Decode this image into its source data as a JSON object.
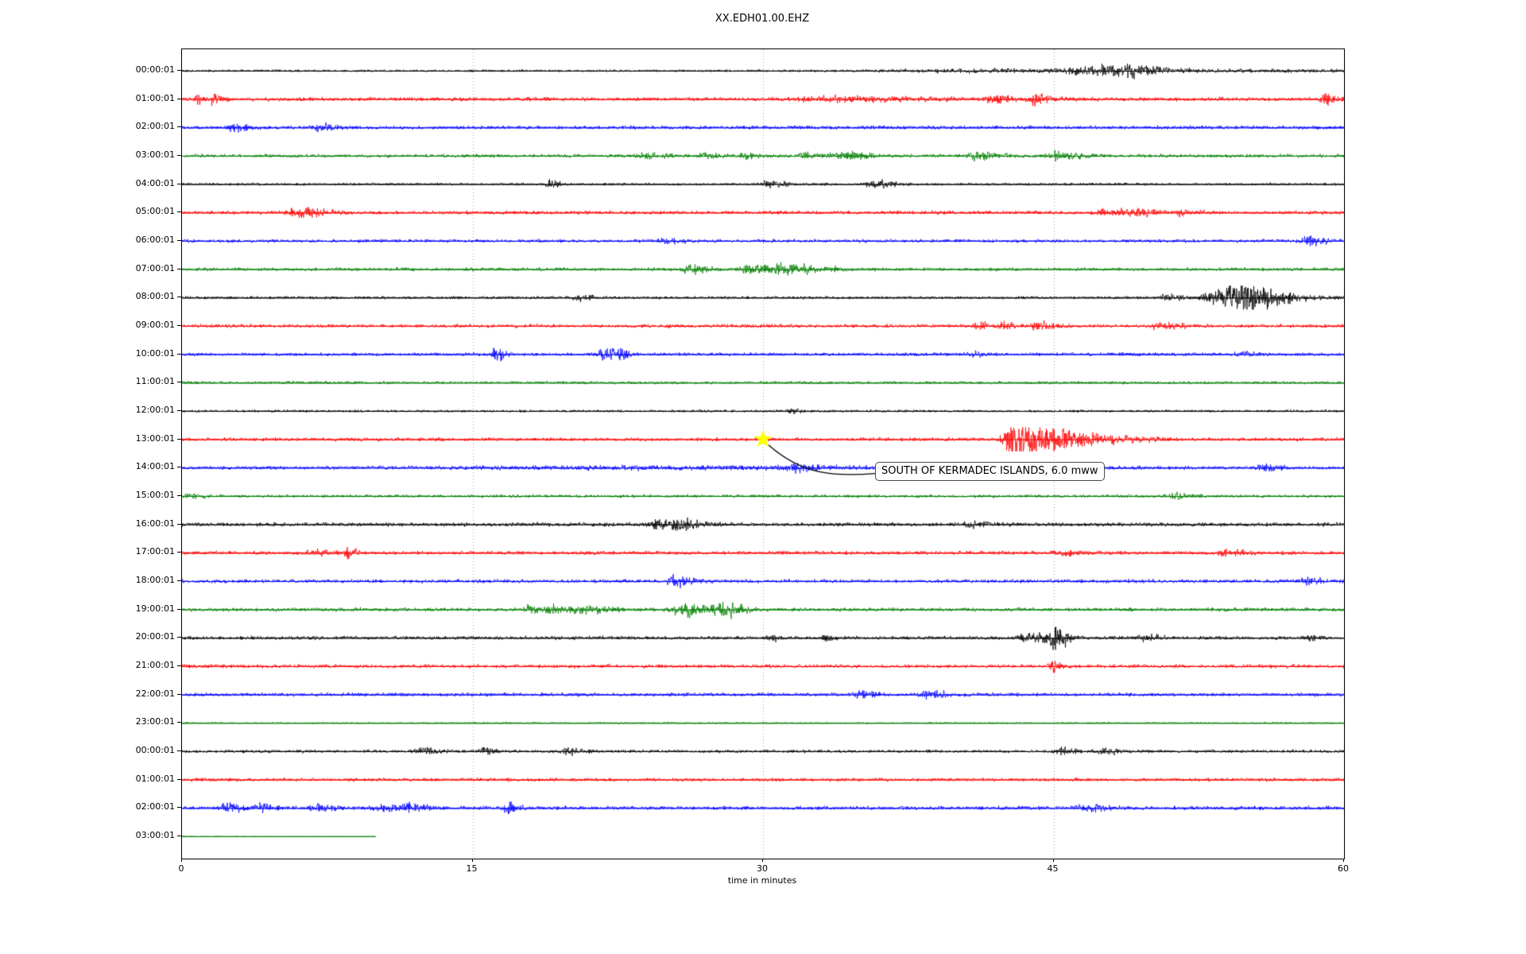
{
  "window": {
    "background": "#ffffff"
  },
  "chart_data": {
    "type": "line",
    "subtype": "seismogram-dayplot",
    "title": "XX.EDH01.00.EHZ",
    "xlabel": "time in minutes",
    "x_range": [
      0,
      60
    ],
    "x_ticks": [
      0,
      15,
      30,
      45,
      60
    ],
    "gridlines": {
      "vertical_at_minutes": [
        15,
        30,
        45
      ],
      "style": "dotted",
      "color": "#a6a6a6"
    },
    "palette": {
      "black": "#000000",
      "red": "#ff0000",
      "blue": "#0000ff",
      "green": "#008000"
    },
    "annotation": {
      "text": "SOUTH OF KERMADEC ISLANDS, 6.0 mww",
      "row": 13,
      "minute": 30,
      "marker": "star-icon",
      "marker_color": "#ffff00",
      "box_fill": "#ffffff",
      "box_border": "#4a4a4a"
    },
    "rows": [
      {
        "label": "00:00:01",
        "color": "black",
        "noise": 1.0,
        "events": [
          [
            43,
            1.2,
            5
          ],
          [
            46,
            2.5,
            0.2
          ],
          [
            46.8,
            2.5,
            0.2
          ],
          [
            47.5,
            3,
            0.2
          ],
          [
            48.3,
            2.5,
            0.2
          ],
          [
            49,
            3.5,
            0.2
          ],
          [
            50,
            2.5,
            0.2
          ]
        ]
      },
      {
        "label": "01:00:01",
        "color": "red",
        "noise": 1.6,
        "events": [
          [
            0.8,
            4.5,
            0.12
          ],
          [
            1.6,
            3.5,
            0.15
          ],
          [
            34,
            1.5,
            1.5
          ],
          [
            42,
            3,
            0.3
          ],
          [
            44.1,
            4.5,
            0.25
          ],
          [
            59.1,
            4.5,
            0.2
          ]
        ]
      },
      {
        "label": "02:00:01",
        "color": "blue",
        "noise": 1.5,
        "events": [
          [
            2.7,
            3,
            0.25
          ],
          [
            7.1,
            2,
            0.3
          ]
        ]
      },
      {
        "label": "03:00:01",
        "color": "green",
        "noise": 1.4,
        "events": [
          [
            24,
            2,
            0.3
          ],
          [
            27.2,
            2,
            0.3
          ],
          [
            29.1,
            2,
            0.25
          ],
          [
            32.2,
            2,
            0.3
          ],
          [
            34.2,
            3,
            0.4
          ],
          [
            41,
            3,
            0.35
          ],
          [
            45.2,
            3,
            0.4
          ]
        ]
      },
      {
        "label": "04:00:01",
        "color": "black",
        "noise": 1.1,
        "events": [
          [
            19,
            3,
            0.15
          ],
          [
            30.3,
            2.5,
            0.3
          ],
          [
            35.8,
            3,
            0.3
          ]
        ]
      },
      {
        "label": "05:00:01",
        "color": "red",
        "noise": 1.5,
        "events": [
          [
            6,
            3,
            0.5
          ],
          [
            48,
            2.5,
            0.5
          ],
          [
            49.5,
            2.5,
            0.3
          ],
          [
            51.5,
            2,
            0.3
          ]
        ]
      },
      {
        "label": "06:00:01",
        "color": "blue",
        "noise": 1.4,
        "events": [
          [
            25,
            1.8,
            0.3
          ],
          [
            58.3,
            3.5,
            0.3
          ]
        ]
      },
      {
        "label": "07:00:01",
        "color": "green",
        "noise": 1.4,
        "events": [
          [
            26.1,
            2.5,
            0.2
          ],
          [
            26.7,
            2.5,
            0.2
          ],
          [
            29.2,
            3.5,
            0.3
          ],
          [
            30.7,
            4,
            0.35
          ],
          [
            31.4,
            2.5,
            0.2
          ],
          [
            32.2,
            2.5,
            0.2
          ],
          [
            33.3,
            2,
            0.2
          ]
        ]
      },
      {
        "label": "08:00:01",
        "color": "black",
        "noise": 1.2,
        "events": [
          [
            20.5,
            2.5,
            0.2
          ],
          [
            50.8,
            3,
            0.25
          ],
          [
            53.1,
            4.5,
            0.3
          ],
          [
            54.3,
            8,
            0.4
          ],
          [
            55,
            6,
            0.5
          ],
          [
            56,
            2.5,
            1
          ]
        ]
      },
      {
        "label": "09:00:01",
        "color": "red",
        "noise": 1.5,
        "events": [
          [
            41.2,
            3,
            0.2
          ],
          [
            42.4,
            2.5,
            0.2
          ],
          [
            44.2,
            3,
            0.3
          ],
          [
            50.5,
            3.5,
            0.3
          ]
        ]
      },
      {
        "label": "10:00:01",
        "color": "blue",
        "noise": 1.4,
        "events": [
          [
            16.2,
            4.5,
            0.15
          ],
          [
            21.8,
            3.5,
            0.3
          ],
          [
            22.4,
            3,
            0.25
          ],
          [
            40.8,
            2,
            0.2
          ],
          [
            54.6,
            2.5,
            0.2
          ]
        ]
      },
      {
        "label": "11:00:01",
        "color": "green",
        "noise": 1.2,
        "events": []
      },
      {
        "label": "12:00:01",
        "color": "black",
        "noise": 1.1,
        "events": [
          [
            31.5,
            1.8,
            0.15
          ]
        ]
      },
      {
        "label": "13:00:01",
        "color": "red",
        "noise": 1.5,
        "events": [
          [
            42.9,
            12,
            0.3
          ],
          [
            43.6,
            7,
            0.5
          ],
          [
            44.8,
            4,
            0.8
          ],
          [
            46.5,
            2.5,
            1
          ]
        ]
      },
      {
        "label": "14:00:01",
        "color": "blue",
        "noise": 1.4,
        "events": [
          [
            22,
            1,
            6
          ],
          [
            31.6,
            3,
            0.25
          ],
          [
            55.9,
            2.5,
            0.25
          ]
        ]
      },
      {
        "label": "15:00:01",
        "color": "green",
        "noise": 1.3,
        "events": [
          [
            0.5,
            2.5,
            0.2
          ],
          [
            51.3,
            2.5,
            0.25
          ]
        ]
      },
      {
        "label": "16:00:01",
        "color": "black",
        "noise": 1.7,
        "events": [
          [
            24.6,
            3.5,
            0.35
          ],
          [
            25.6,
            4,
            0.35
          ],
          [
            40.8,
            2.5,
            0.25
          ]
        ]
      },
      {
        "label": "17:00:01",
        "color": "red",
        "noise": 1.5,
        "events": [
          [
            6.8,
            3,
            0.25
          ],
          [
            8.6,
            3.5,
            0.15
          ],
          [
            45.5,
            2,
            0.3
          ],
          [
            54,
            2,
            0.3
          ]
        ]
      },
      {
        "label": "18:00:01",
        "color": "blue",
        "noise": 1.5,
        "events": [
          [
            25.4,
            4,
            0.3
          ],
          [
            58,
            2.5,
            0.25
          ]
        ]
      },
      {
        "label": "19:00:01",
        "color": "green",
        "noise": 1.5,
        "events": [
          [
            17.9,
            4,
            0.15
          ],
          [
            18.8,
            3,
            0.15
          ],
          [
            20.2,
            2.5,
            0.7
          ],
          [
            25.6,
            3.5,
            0.25
          ],
          [
            26.5,
            3,
            0.4
          ],
          [
            27.8,
            3.5,
            0.3
          ],
          [
            28.4,
            3,
            0.25
          ]
        ]
      },
      {
        "label": "20:00:01",
        "color": "black",
        "noise": 1.5,
        "events": [
          [
            30.4,
            2.5,
            0.15
          ],
          [
            33.2,
            2.5,
            0.15
          ],
          [
            43.6,
            2.5,
            0.25
          ],
          [
            44.3,
            2.5,
            0.2
          ],
          [
            45.1,
            10,
            0.2
          ],
          [
            49.7,
            2.5,
            0.25
          ],
          [
            58,
            2,
            0.15
          ]
        ]
      },
      {
        "label": "21:00:01",
        "color": "red",
        "noise": 1.5,
        "events": [
          [
            44.9,
            5,
            0.15
          ]
        ]
      },
      {
        "label": "22:00:01",
        "color": "blue",
        "noise": 1.5,
        "events": [
          [
            35,
            3,
            0.25
          ],
          [
            38.5,
            3,
            0.3
          ]
        ]
      },
      {
        "label": "23:00:01",
        "color": "green",
        "noise": 0.7,
        "events": []
      },
      {
        "label": "00:00:01",
        "color": "black",
        "noise": 1.3,
        "events": [
          [
            12.4,
            2.5,
            0.25
          ],
          [
            15.6,
            3,
            0.2
          ],
          [
            19.9,
            2.5,
            0.3
          ],
          [
            45.4,
            2.5,
            0.25
          ],
          [
            47.6,
            2.5,
            0.25
          ]
        ]
      },
      {
        "label": "01:00:01",
        "color": "red",
        "noise": 1.4,
        "events": []
      },
      {
        "label": "02:00:01",
        "color": "blue",
        "noise": 1.6,
        "events": [
          [
            2.3,
            3,
            0.25
          ],
          [
            4.1,
            2.5,
            0.25
          ],
          [
            6.9,
            3,
            0.25
          ],
          [
            10.4,
            2.5,
            0.4
          ],
          [
            11.9,
            3,
            0.25
          ],
          [
            16.9,
            4,
            0.2
          ],
          [
            46.6,
            2.5,
            0.3
          ]
        ]
      },
      {
        "label": "03:00:01",
        "color": "green",
        "noise": 0.5,
        "duration_min": 10,
        "fade": true,
        "events": []
      }
    ]
  }
}
